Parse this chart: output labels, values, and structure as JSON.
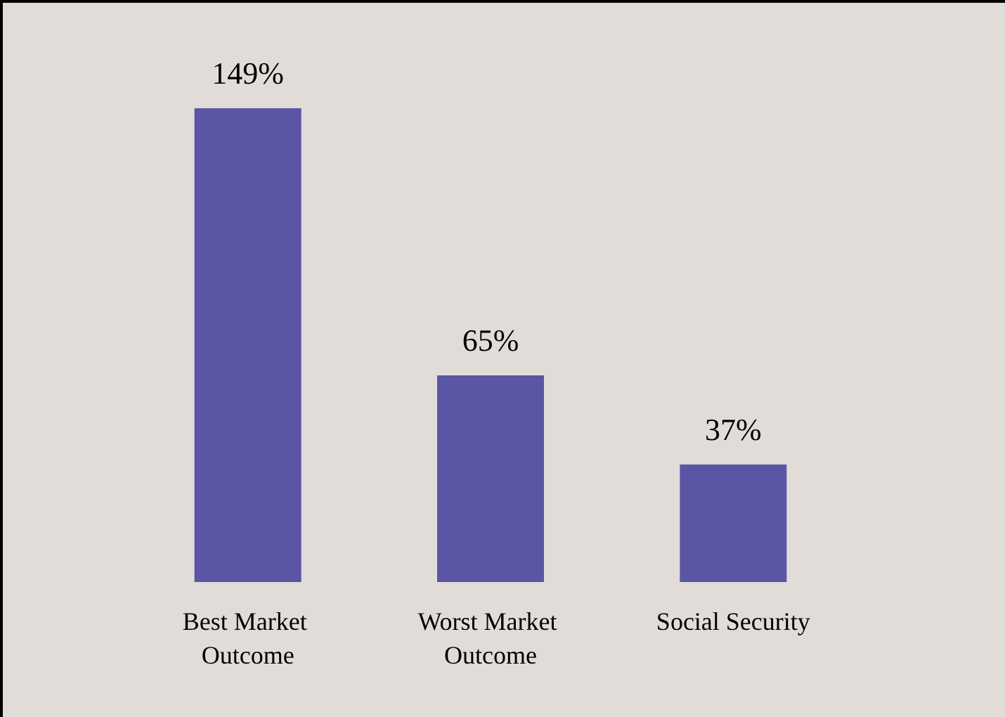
{
  "chart_data": {
    "type": "bar",
    "categories": [
      "Best Market Outcome",
      "Worst Market Outcome",
      "Social Security"
    ],
    "values": [
      149,
      65,
      37
    ],
    "value_labels": [
      "149%",
      "65%",
      "37%"
    ],
    "color": "#5b55a5"
  }
}
